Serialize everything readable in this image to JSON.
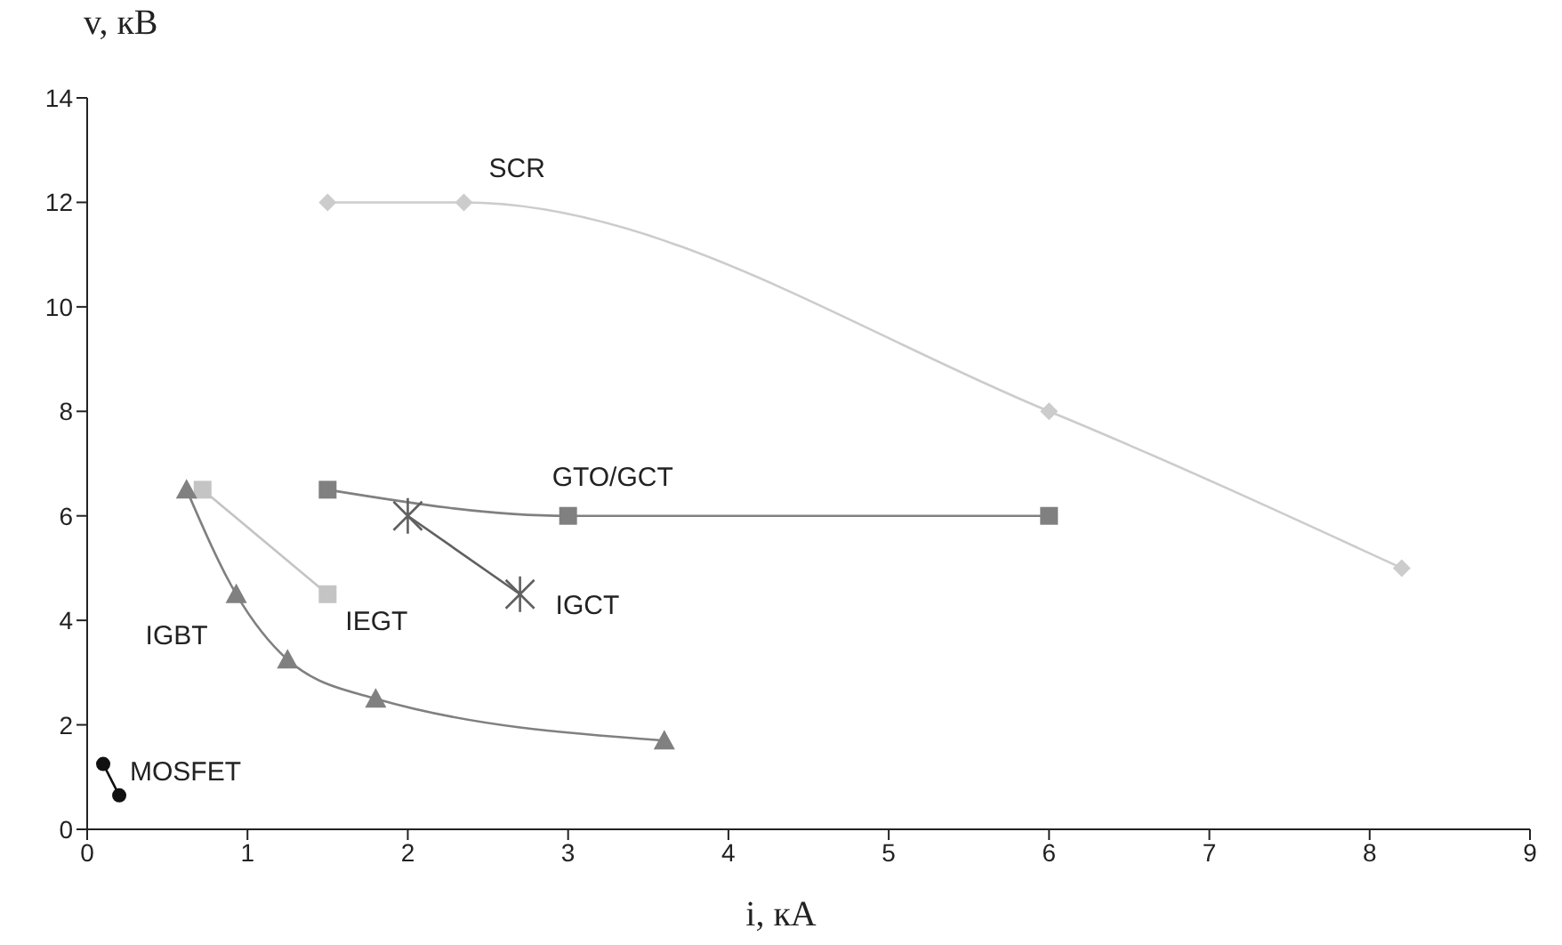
{
  "chart_data": {
    "type": "line",
    "xlabel": "i, кА",
    "ylabel": "v, кВ",
    "xlim": [
      0,
      9
    ],
    "xticks": [
      0,
      1,
      2,
      3,
      4,
      5,
      6,
      7,
      8,
      9
    ],
    "ylim": [
      0,
      14
    ],
    "yticks": [
      0,
      2,
      4,
      6,
      8,
      10,
      12,
      14
    ],
    "grid": false,
    "legend": false,
    "line_style": "solid",
    "series": [
      {
        "name": "SCR",
        "color": "#cccccc",
        "marker": "diamond",
        "x": [
          1.5,
          2.35,
          6,
          8.2
        ],
        "values": [
          12,
          12,
          8,
          5
        ]
      },
      {
        "name": "GTO/GCT",
        "color": "#808080",
        "marker": "square",
        "x": [
          1.5,
          3,
          6
        ],
        "values": [
          6.5,
          6,
          6
        ]
      },
      {
        "name": "IGCT",
        "color": "#606060",
        "marker": "cross",
        "x": [
          2,
          2.7
        ],
        "values": [
          6,
          4.5
        ]
      },
      {
        "name": "IEGT",
        "color": "#c4c4c4",
        "marker": "square",
        "x": [
          0.72,
          1.5
        ],
        "values": [
          6.5,
          4.5
        ]
      },
      {
        "name": "IGBT",
        "color": "#808080",
        "marker": "triangle",
        "x": [
          0.62,
          0.93,
          1.25,
          1.8,
          3.6
        ],
        "values": [
          6.5,
          4.5,
          3.25,
          2.5,
          1.7
        ]
      },
      {
        "name": "MOSFET",
        "color": "#111111",
        "marker": "circle",
        "x": [
          0.1,
          0.2
        ],
        "values": [
          1.25,
          0.65
        ]
      }
    ]
  }
}
